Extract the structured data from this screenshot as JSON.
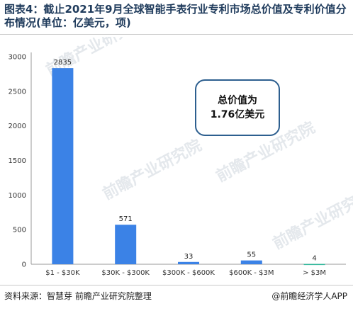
{
  "title": "图表4：截止2021年9月全球智能手表行业专利市场总价值及专利价值分布情况(单位：亿美元，项)",
  "callout": "总价值为1.76亿美元",
  "watermark": "前瞻产业研究院",
  "source": "资料来源：智慧芽 前瞻产业研究院整理",
  "credit": "@前瞻经济学人APP",
  "colors": {
    "bar": "#3b82e6",
    "last_bar": "#2eb89a",
    "axis": "#999999"
  },
  "chart_data": {
    "type": "bar",
    "categories": [
      "$1 - $30K",
      "$30K - $300K",
      "$300K - $600K",
      "$600K - $3M",
      "> $3M"
    ],
    "values": [
      2835,
      571,
      33,
      55,
      4
    ],
    "title": "图表4：截止2021年9月全球智能手表行业专利市场总价值及专利价值分布情况(单位：亿美元，项)",
    "xlabel": "",
    "ylabel": "",
    "ylim": [
      0,
      3000
    ],
    "yticks": [
      0,
      500,
      1000,
      1500,
      2000,
      2500,
      3000
    ],
    "grid": false,
    "legend": "none"
  }
}
